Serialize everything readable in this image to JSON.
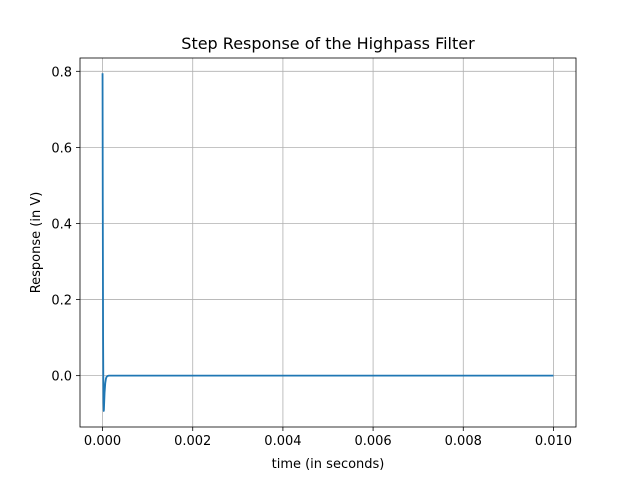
{
  "chart_data": {
    "type": "line",
    "title": "Step Response of the Highpass Filter",
    "xlabel": "time (in seconds)",
    "ylabel": "Response (in V)",
    "xlim": [
      -0.0005,
      0.0105
    ],
    "ylim": [
      -0.135,
      0.835
    ],
    "xticks": [
      0.0,
      0.002,
      0.004,
      0.006,
      0.008,
      0.01
    ],
    "xtick_labels": [
      "0.000",
      "0.002",
      "0.004",
      "0.006",
      "0.008",
      "0.010"
    ],
    "yticks": [
      0.0,
      0.2,
      0.4,
      0.6,
      0.8
    ],
    "ytick_labels": [
      "0.0",
      "0.2",
      "0.4",
      "0.6",
      "0.8"
    ],
    "grid": true,
    "series": [
      {
        "color": "#1f77b4",
        "x": [
          0.0,
          5e-06,
          1.2e-05,
          2e-05,
          2.6e-05,
          3e-05,
          3.5e-05,
          4.5e-05,
          6e-05,
          7.5e-05,
          9e-05,
          0.00011,
          0.00014,
          0.0002,
          0.0005,
          0.001,
          0.002,
          0.004,
          0.006,
          0.008,
          0.01
        ],
        "values": [
          0.795,
          0.45,
          0.1,
          -0.07,
          -0.093,
          -0.09,
          -0.075,
          -0.045,
          -0.02,
          -0.008,
          -0.003,
          -0.001,
          0.0,
          0.0,
          0.0,
          0.0,
          0.0,
          0.0,
          0.0,
          0.0,
          0.0
        ]
      }
    ]
  }
}
